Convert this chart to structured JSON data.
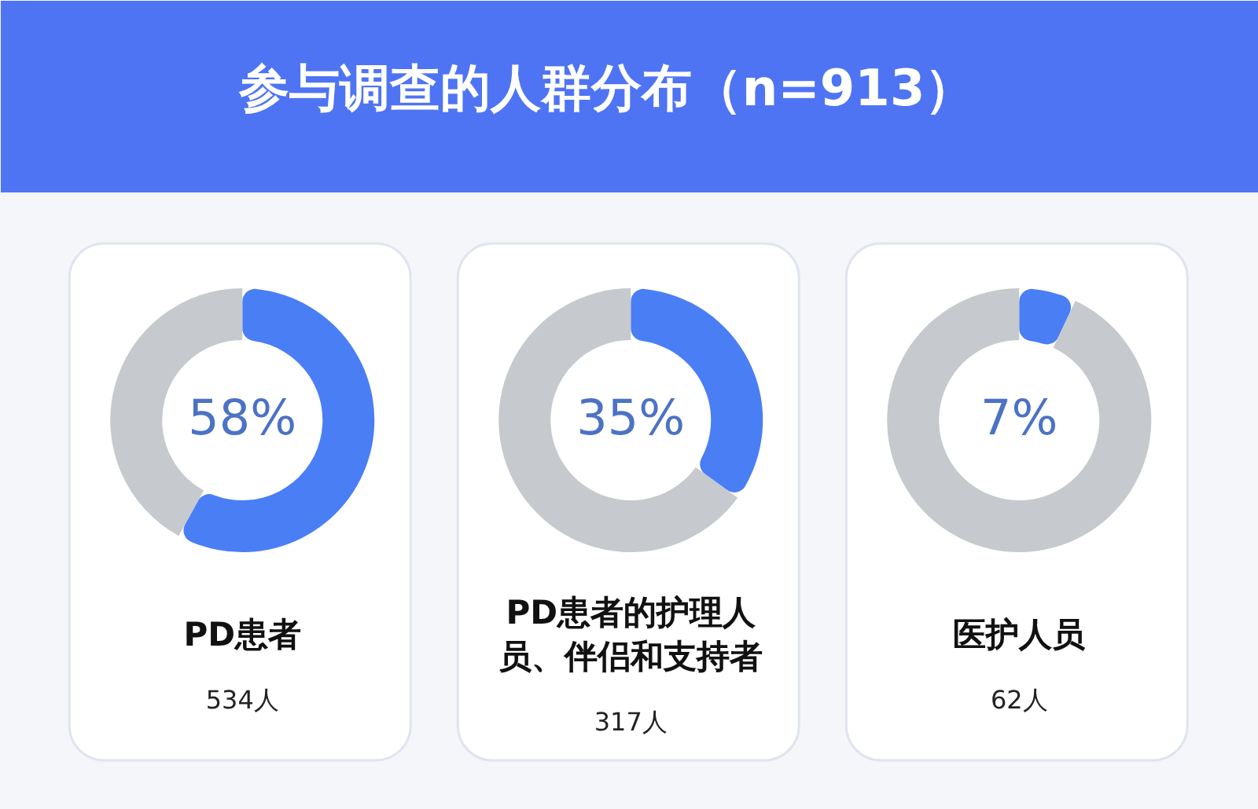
{
  "chart_data": [
    {
      "type": "other",
      "title": "参与调查的人群分布（n=913）"
    },
    {
      "type": "donut",
      "title": "PD患者",
      "categories": [
        null,
        null
      ],
      "values": [
        58,
        42
      ],
      "colors": [
        "#4a7ef5",
        "#c6c9cd"
      ],
      "value_labels": [
        "58%",
        null
      ],
      "annotations": [
        "534人"
      ]
    },
    {
      "type": "donut",
      "title": "PD患者的护理人员、伴侣和支持者",
      "categories": [
        null,
        null
      ],
      "values": [
        35,
        65
      ],
      "colors": [
        "#4a7ef5",
        "#c6c9cd"
      ],
      "value_labels": [
        "35%",
        null
      ],
      "annotations": [
        "317人"
      ]
    },
    {
      "type": "donut",
      "title": "医护人员",
      "categories": [
        null,
        null
      ],
      "values": [
        7,
        93
      ],
      "colors": [
        "#4a7ef5",
        "#c6c9cd"
      ],
      "value_labels": [
        "7%",
        null
      ],
      "annotations": [
        "62人"
      ]
    }
  ]
}
